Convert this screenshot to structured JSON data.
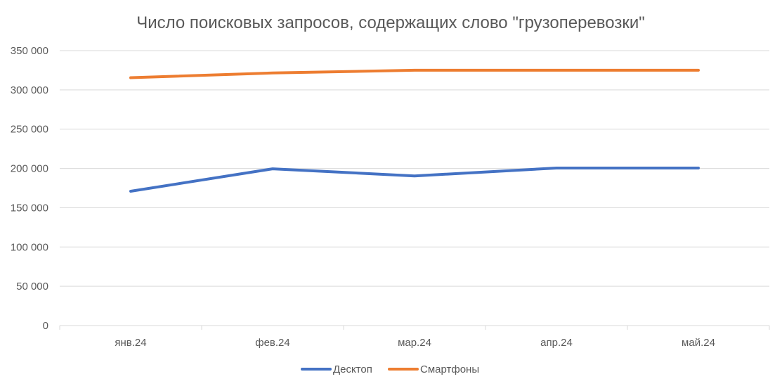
{
  "chart_data": {
    "type": "line",
    "title": "Число поисковых запросов, содержащих слово \"грузоперевозки\"",
    "xlabel": "",
    "ylabel": "",
    "categories": [
      "янв.24",
      "фев.24",
      "мар.24",
      "апр.24",
      "май.24"
    ],
    "series": [
      {
        "name": "Десктоп",
        "color": "#4472C4",
        "values": [
          171000,
          199500,
          190500,
          200500,
          200500
        ]
      },
      {
        "name": "Смартфоны",
        "color": "#ED7D31",
        "values": [
          315500,
          321500,
          325000,
          325000,
          325000
        ]
      }
    ],
    "ylim": [
      0,
      350000
    ],
    "yticks": [
      {
        "value": 0,
        "label": "0"
      },
      {
        "value": 50000,
        "label": "50 000"
      },
      {
        "value": 100000,
        "label": "100 000"
      },
      {
        "value": 150000,
        "label": "150 000"
      },
      {
        "value": 200000,
        "label": "200 000"
      },
      {
        "value": 250000,
        "label": "250 000"
      },
      {
        "value": 300000,
        "label": "300 000"
      },
      {
        "value": 350000,
        "label": "350 000"
      }
    ],
    "grid": true,
    "legend_position": "bottom",
    "gridline_color": "#D9D9D9"
  }
}
